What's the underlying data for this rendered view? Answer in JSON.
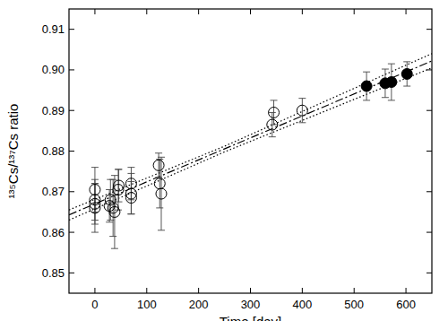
{
  "chart_data": {
    "type": "scatter",
    "x_label": "Time [day]",
    "y_label": "¹³⁵Cs/¹³⁷Cs ratio",
    "xlim": [
      -50,
      650
    ],
    "ylim": [
      0.845,
      0.915
    ],
    "xticks": [
      0,
      100,
      200,
      300,
      400,
      500,
      600
    ],
    "yticks": [
      0.85,
      0.86,
      0.87,
      0.88,
      0.89,
      {
        "value": 0.9,
        "label": "0.90"
      },
      0.91
    ],
    "grid": false,
    "series": [
      {
        "type": "scatter",
        "marker": "open_circle",
        "color": "#000000",
        "x": [
          0,
          0,
          0,
          0,
          28,
          30,
          35,
          38,
          45,
          46,
          70,
          70,
          70,
          123,
          125,
          128,
          342,
          345,
          400
        ],
        "values": [
          0.8705,
          0.868,
          0.867,
          0.866,
          0.8665,
          0.868,
          0.866,
          0.865,
          0.8705,
          0.8715,
          0.872,
          0.8695,
          0.8685,
          0.8765,
          0.872,
          0.8695,
          0.8865,
          0.8895,
          0.89
        ],
        "errors": [
          0.0055,
          0.005,
          0.005,
          0.006,
          0.004,
          0.005,
          0.007,
          0.009,
          0.005,
          0.004,
          0.004,
          0.005,
          0.004,
          0.003,
          0.006,
          0.009,
          0.003,
          0.003,
          0.003
        ]
      },
      {
        "type": "scatter",
        "marker": "filled_circle",
        "color": "#000000",
        "x": [
          524,
          560,
          572,
          602
        ],
        "values": [
          0.896,
          0.8967,
          0.897,
          0.899
        ],
        "errors": [
          0.0035,
          0.0035,
          0.0045,
          0.003
        ]
      },
      {
        "type": "line",
        "line_style": "dashdot",
        "color": "#000000",
        "x": [
          -50,
          650
        ],
        "values": [
          0.8643,
          0.9022
        ]
      },
      {
        "type": "line",
        "line_style": "dotted",
        "color": "#000000",
        "x": [
          -50,
          250,
          650
        ],
        "values": [
          0.8655,
          0.8812,
          0.904
        ]
      },
      {
        "type": "line",
        "line_style": "dotted",
        "color": "#000000",
        "x": [
          -50,
          250,
          650
        ],
        "values": [
          0.863,
          0.8798,
          0.9005
        ]
      }
    ]
  }
}
